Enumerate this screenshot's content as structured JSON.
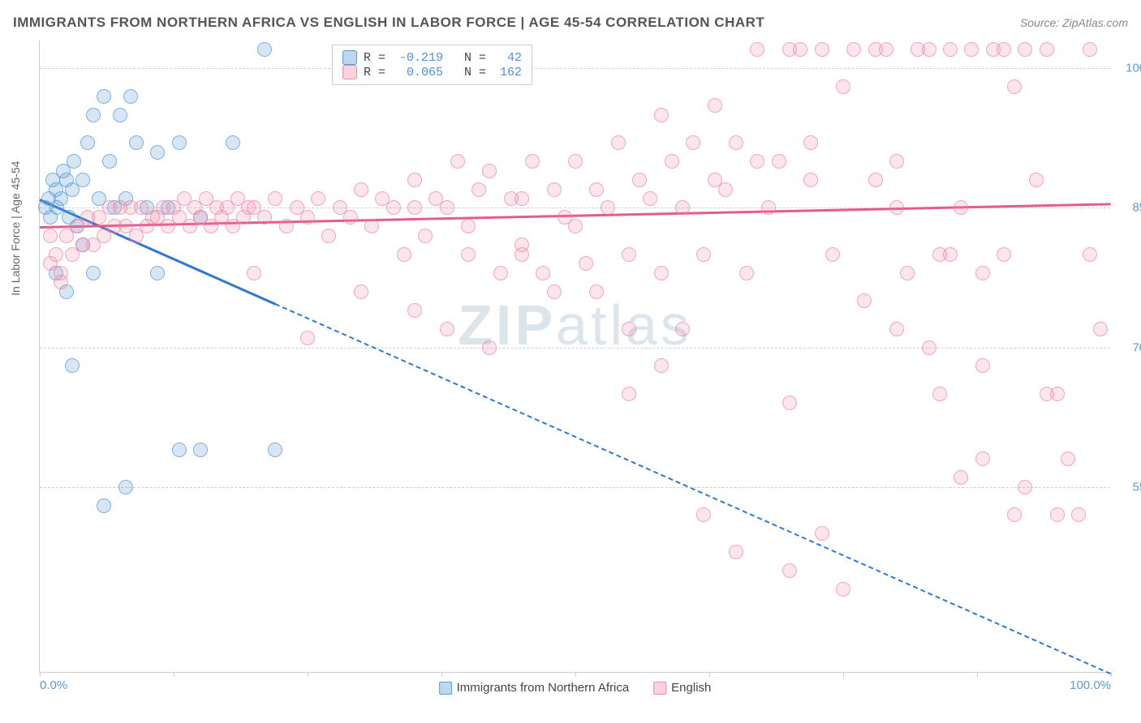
{
  "title": "IMMIGRANTS FROM NORTHERN AFRICA VS ENGLISH IN LABOR FORCE | AGE 45-54 CORRELATION CHART",
  "source_label": "Source:",
  "source_name": "ZipAtlas.com",
  "watermark": "ZIPatlas",
  "y_axis_label": "In Labor Force | Age 45-54",
  "chart": {
    "type": "scatter",
    "xlim": [
      0,
      100
    ],
    "ylim": [
      35,
      103
    ],
    "y_ticks": [
      55.0,
      70.0,
      85.0,
      100.0
    ],
    "y_tick_labels": [
      "55.0%",
      "70.0%",
      "85.0%",
      "100.0%"
    ],
    "x_ticks": [
      0,
      12.5,
      25,
      37.5,
      50,
      62.5,
      75,
      87.5,
      100
    ],
    "x_tick_labels": [
      "0.0%",
      "100.0%"
    ],
    "background_color": "#ffffff",
    "grid_color": "#d0d0d0",
    "marker_size": 18,
    "series": [
      {
        "key": "a",
        "name": "Immigrants from Northern Africa",
        "color_fill": "rgba(91,155,213,0.25)",
        "color_border": "#5b9bd5",
        "trend_color": "#2f78d1",
        "R": "-0.219",
        "N": "42",
        "trend": {
          "x1": 0,
          "y1": 86,
          "x2": 100,
          "y2": 35,
          "solid_until_x": 22
        },
        "points": [
          [
            0.5,
            85
          ],
          [
            0.8,
            86
          ],
          [
            1,
            84
          ],
          [
            1.2,
            88
          ],
          [
            1.5,
            87
          ],
          [
            1.6,
            85
          ],
          [
            2,
            86
          ],
          [
            2.2,
            89
          ],
          [
            2.5,
            88
          ],
          [
            2.7,
            84
          ],
          [
            3,
            87
          ],
          [
            3.2,
            90
          ],
          [
            3.5,
            83
          ],
          [
            4,
            88
          ],
          [
            4.5,
            92
          ],
          [
            5,
            95
          ],
          [
            5.5,
            86
          ],
          [
            6,
            97
          ],
          [
            6.5,
            90
          ],
          [
            7,
            85
          ],
          [
            7.5,
            95
          ],
          [
            8,
            86
          ],
          [
            8.5,
            97
          ],
          [
            9,
            92
          ],
          [
            10,
            85
          ],
          [
            11,
            91
          ],
          [
            12,
            85
          ],
          [
            13,
            92
          ],
          [
            15,
            84
          ],
          [
            18,
            92
          ],
          [
            21,
            102
          ],
          [
            3,
            68
          ],
          [
            5,
            78
          ],
          [
            2.5,
            76
          ],
          [
            1.5,
            78
          ],
          [
            8,
            55
          ],
          [
            6,
            53
          ],
          [
            13,
            59
          ],
          [
            15,
            59
          ],
          [
            22,
            59
          ],
          [
            4,
            81
          ],
          [
            11,
            78
          ]
        ]
      },
      {
        "key": "b",
        "name": "English",
        "color_fill": "rgba(240,128,160,0.2)",
        "color_border": "#e88ba8",
        "trend_color": "#e75a8f",
        "R": "0.065",
        "N": "162",
        "trend": {
          "x1": 0,
          "y1": 83,
          "x2": 100,
          "y2": 85.5,
          "solid_until_x": 100
        },
        "points": [
          [
            1,
            79
          ],
          [
            1.5,
            80
          ],
          [
            2,
            78
          ],
          [
            2.5,
            82
          ],
          [
            3,
            80
          ],
          [
            3.5,
            83
          ],
          [
            4,
            81
          ],
          [
            4.5,
            84
          ],
          [
            5,
            81
          ],
          [
            5.5,
            84
          ],
          [
            6,
            82
          ],
          [
            6.5,
            85
          ],
          [
            7,
            83
          ],
          [
            7.5,
            85
          ],
          [
            8,
            83
          ],
          [
            8.5,
            85
          ],
          [
            9,
            82
          ],
          [
            9.5,
            85
          ],
          [
            10,
            83
          ],
          [
            10.5,
            84
          ],
          [
            11,
            84
          ],
          [
            11.5,
            85
          ],
          [
            12,
            83
          ],
          [
            12.5,
            85
          ],
          [
            13,
            84
          ],
          [
            13.5,
            86
          ],
          [
            14,
            83
          ],
          [
            14.5,
            85
          ],
          [
            15,
            84
          ],
          [
            15.5,
            86
          ],
          [
            16,
            83
          ],
          [
            16.5,
            85
          ],
          [
            17,
            84
          ],
          [
            17.5,
            85
          ],
          [
            18,
            83
          ],
          [
            18.5,
            86
          ],
          [
            19,
            84
          ],
          [
            19.5,
            85
          ],
          [
            20,
            85
          ],
          [
            21,
            84
          ],
          [
            22,
            86
          ],
          [
            23,
            83
          ],
          [
            24,
            85
          ],
          [
            25,
            84
          ],
          [
            26,
            86
          ],
          [
            27,
            82
          ],
          [
            28,
            85
          ],
          [
            29,
            84
          ],
          [
            30,
            87
          ],
          [
            31,
            83
          ],
          [
            32,
            86
          ],
          [
            33,
            85
          ],
          [
            34,
            80
          ],
          [
            35,
            88
          ],
          [
            36,
            82
          ],
          [
            37,
            86
          ],
          [
            38,
            85
          ],
          [
            39,
            90
          ],
          [
            40,
            80
          ],
          [
            41,
            87
          ],
          [
            42,
            89
          ],
          [
            43,
            78
          ],
          [
            44,
            86
          ],
          [
            45,
            81
          ],
          [
            46,
            90
          ],
          [
            47,
            78
          ],
          [
            48,
            87
          ],
          [
            49,
            84
          ],
          [
            50,
            90
          ],
          [
            51,
            79
          ],
          [
            52,
            87
          ],
          [
            53,
            85
          ],
          [
            54,
            92
          ],
          [
            55,
            80
          ],
          [
            56,
            88
          ],
          [
            57,
            86
          ],
          [
            58,
            78
          ],
          [
            59,
            90
          ],
          [
            60,
            85
          ],
          [
            61,
            92
          ],
          [
            62,
            80
          ],
          [
            63,
            88
          ],
          [
            64,
            87
          ],
          [
            65,
            92
          ],
          [
            66,
            78
          ],
          [
            67,
            102
          ],
          [
            68,
            85
          ],
          [
            69,
            90
          ],
          [
            70,
            102
          ],
          [
            71,
            102
          ],
          [
            72,
            88
          ],
          [
            73,
            102
          ],
          [
            74,
            80
          ],
          [
            75,
            98
          ],
          [
            76,
            102
          ],
          [
            77,
            75
          ],
          [
            78,
            102
          ],
          [
            79,
            102
          ],
          [
            80,
            90
          ],
          [
            81,
            78
          ],
          [
            82,
            102
          ],
          [
            83,
            102
          ],
          [
            84,
            65
          ],
          [
            85,
            102
          ],
          [
            86,
            85
          ],
          [
            87,
            102
          ],
          [
            88,
            78
          ],
          [
            89,
            102
          ],
          [
            90,
            102
          ],
          [
            91,
            52
          ],
          [
            92,
            102
          ],
          [
            93,
            88
          ],
          [
            94,
            102
          ],
          [
            95,
            52
          ],
          [
            96,
            58
          ],
          [
            97,
            52
          ],
          [
            98,
            102
          ],
          [
            99,
            72
          ],
          [
            86,
            56
          ],
          [
            88,
            58
          ],
          [
            70,
            64
          ],
          [
            73,
            50
          ],
          [
            75,
            44
          ],
          [
            60,
            72
          ],
          [
            55,
            72
          ],
          [
            52,
            76
          ],
          [
            48,
            76
          ],
          [
            45,
            80
          ],
          [
            42,
            70
          ],
          [
            38,
            72
          ],
          [
            35,
            74
          ],
          [
            30,
            76
          ],
          [
            25,
            71
          ],
          [
            20,
            78
          ],
          [
            63,
            96
          ],
          [
            58,
            95
          ],
          [
            67,
            90
          ],
          [
            72,
            92
          ],
          [
            78,
            88
          ],
          [
            83,
            70
          ],
          [
            88,
            68
          ],
          [
            65,
            48
          ],
          [
            70,
            46
          ],
          [
            62,
            52
          ],
          [
            58,
            68
          ],
          [
            55,
            65
          ],
          [
            50,
            83
          ],
          [
            45,
            86
          ],
          [
            40,
            83
          ],
          [
            35,
            85
          ],
          [
            84,
            80
          ],
          [
            1,
            82
          ],
          [
            2,
            77
          ],
          [
            94,
            65
          ],
          [
            80,
            72
          ],
          [
            80,
            85
          ],
          [
            85,
            80
          ],
          [
            90,
            80
          ],
          [
            95,
            65
          ],
          [
            92,
            55
          ],
          [
            91,
            98
          ],
          [
            98,
            80
          ]
        ]
      }
    ]
  },
  "bottom_legend": [
    {
      "swatch": "sa",
      "label": "Immigrants from Northern Africa"
    },
    {
      "swatch": "sb",
      "label": "English"
    }
  ]
}
